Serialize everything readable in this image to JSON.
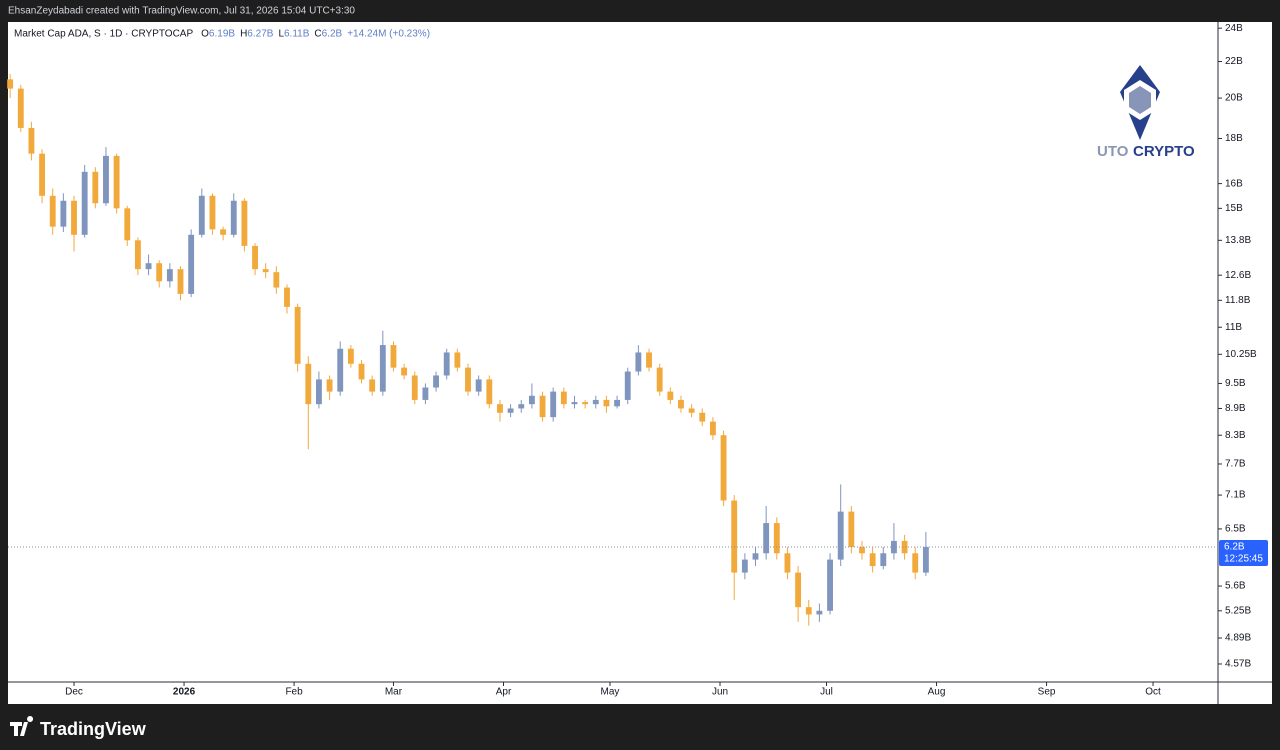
{
  "header": {
    "credit": "EhsanZeydabadi created with TradingView.com, Jul 31, 2026 15:04 UTC+3:30"
  },
  "legend": {
    "symbol": "Market Cap ADA, S · 1D · CRYPTOCAP",
    "items": [
      {
        "key": "O",
        "value": "6.19B"
      },
      {
        "key": "H",
        "value": "6.27B"
      },
      {
        "key": "L",
        "value": "6.11B"
      },
      {
        "key": "C",
        "value": "6.2B"
      }
    ],
    "change": "+14.24M (+0.23%)"
  },
  "logo": {
    "first": "UTO",
    "second": "CRYPTO"
  },
  "footer": {
    "brand": "TradingView"
  },
  "chart_data": {
    "type": "candlestick",
    "log_scale": true,
    "grid": false,
    "up_color": "#7f95bd",
    "down_color": "#f2a93b",
    "xlim": [
      -18.6,
      322.3
    ],
    "xticks": [
      {
        "value": 0,
        "label": "Dec"
      },
      {
        "value": 31,
        "label": "2026"
      },
      {
        "value": 62,
        "label": "Feb"
      },
      {
        "value": 90,
        "label": "Mar"
      },
      {
        "value": 121,
        "label": "Apr"
      },
      {
        "value": 151,
        "label": "May"
      },
      {
        "value": 182,
        "label": "Jun"
      },
      {
        "value": 212,
        "label": "Jul"
      },
      {
        "value": 243,
        "label": "Aug"
      },
      {
        "value": 274,
        "label": "Sep"
      },
      {
        "value": 304,
        "label": "Oct"
      }
    ],
    "ylim": [
      4.36,
      24.39
    ],
    "yticks": [
      {
        "value": 24,
        "label": "24B"
      },
      {
        "value": 22,
        "label": "22B"
      },
      {
        "value": 20,
        "label": "20B"
      },
      {
        "value": 18,
        "label": "18B"
      },
      {
        "value": 16,
        "label": "16B"
      },
      {
        "value": 15,
        "label": "15B"
      },
      {
        "value": 13.8,
        "label": "13.8B"
      },
      {
        "value": 12.6,
        "label": "12.6B"
      },
      {
        "value": 11.8,
        "label": "11.8B"
      },
      {
        "value": 11,
        "label": "11B"
      },
      {
        "value": 10.25,
        "label": "10.25B"
      },
      {
        "value": 9.5,
        "label": "9.5B"
      },
      {
        "value": 8.9,
        "label": "8.9B"
      },
      {
        "value": 8.3,
        "label": "8.3B"
      },
      {
        "value": 7.7,
        "label": "7.7B"
      },
      {
        "value": 7.1,
        "label": "7.1B"
      },
      {
        "value": 6.5,
        "label": "6.5B"
      },
      {
        "value": 5.6,
        "label": "5.6B"
      },
      {
        "value": 5.25,
        "label": "5.25B"
      },
      {
        "value": 4.89,
        "label": "4.89B"
      },
      {
        "value": 4.57,
        "label": "4.57B"
      }
    ],
    "last_price": {
      "value": 6.2,
      "label": "6.2B",
      "countdown": "12:25:45",
      "color": "#2962ff"
    },
    "x": [
      -18,
      -15,
      -12,
      -9,
      -6,
      -3,
      0,
      3,
      6,
      9,
      12,
      15,
      18,
      21,
      24,
      27,
      30,
      33,
      36,
      39,
      42,
      45,
      48,
      51,
      54,
      57,
      60,
      63,
      66,
      69,
      72,
      75,
      78,
      81,
      84,
      87,
      90,
      93,
      96,
      99,
      102,
      105,
      108,
      111,
      114,
      117,
      120,
      123,
      126,
      129,
      132,
      135,
      138,
      141,
      144,
      147,
      150,
      153,
      156,
      159,
      162,
      165,
      168,
      171,
      174,
      177,
      180,
      183,
      186,
      189,
      192,
      195,
      198,
      201,
      204,
      207,
      210,
      213,
      216,
      219,
      222,
      225,
      228,
      231,
      234,
      237,
      240
    ],
    "open": [
      21.0,
      20.5,
      18.5,
      17.3,
      15.5,
      14.3,
      15.3,
      14.0,
      16.5,
      15.2,
      17.2,
      15.0,
      13.8,
      12.8,
      13.0,
      12.4,
      12.8,
      12.0,
      14.0,
      15.5,
      14.2,
      14.0,
      15.3,
      13.6,
      12.8,
      12.7,
      12.2,
      11.6,
      10.0,
      9.0,
      9.6,
      9.3,
      10.4,
      10.0,
      9.6,
      9.3,
      10.5,
      9.9,
      9.7,
      9.1,
      9.4,
      9.7,
      10.3,
      9.9,
      9.3,
      9.6,
      9.0,
      8.8,
      8.9,
      9.0,
      9.2,
      8.7,
      9.3,
      9.0,
      9.05,
      9.0,
      9.1,
      8.95,
      9.1,
      9.8,
      10.3,
      9.9,
      9.3,
      9.1,
      8.9,
      8.8,
      8.6,
      8.3,
      7.0,
      5.8,
      6.0,
      6.1,
      6.6,
      6.1,
      5.8,
      5.3,
      5.2,
      5.25,
      6.0,
      6.8,
      6.2,
      6.1,
      5.9,
      6.1,
      6.3,
      6.1,
      5.8
    ],
    "high": [
      21.3,
      20.7,
      18.8,
      17.5,
      15.8,
      15.6,
      15.5,
      16.8,
      16.7,
      17.6,
      17.3,
      15.1,
      13.9,
      13.3,
      13.1,
      13.0,
      12.9,
      14.2,
      15.8,
      15.6,
      14.3,
      15.6,
      15.4,
      13.7,
      13.0,
      12.9,
      12.3,
      11.7,
      10.2,
      9.8,
      9.7,
      10.6,
      10.5,
      10.1,
      9.7,
      10.9,
      10.6,
      10.0,
      9.8,
      9.5,
      9.8,
      10.4,
      10.4,
      10.0,
      9.7,
      9.7,
      9.1,
      9.0,
      9.1,
      9.5,
      9.3,
      9.4,
      9.4,
      9.2,
      9.1,
      9.2,
      9.2,
      9.2,
      9.9,
      10.5,
      10.4,
      10.0,
      9.4,
      9.2,
      9.0,
      8.9,
      8.7,
      8.4,
      7.1,
      6.1,
      6.2,
      6.9,
      6.7,
      6.2,
      5.9,
      5.4,
      5.35,
      6.1,
      7.3,
      6.9,
      6.3,
      6.2,
      6.2,
      6.6,
      6.4,
      6.2,
      6.45
    ],
    "low": [
      20.0,
      18.3,
      17.0,
      15.2,
      14.0,
      14.1,
      13.4,
      13.9,
      15.0,
      15.1,
      14.8,
      13.6,
      12.6,
      12.6,
      12.2,
      12.2,
      11.8,
      11.9,
      13.9,
      14.0,
      13.8,
      13.9,
      13.4,
      12.6,
      12.5,
      12.0,
      11.4,
      9.8,
      8.0,
      8.9,
      9.1,
      9.2,
      9.9,
      9.5,
      9.2,
      9.2,
      9.8,
      9.6,
      9.0,
      9.0,
      9.3,
      9.6,
      9.8,
      9.2,
      9.2,
      8.9,
      8.6,
      8.7,
      8.8,
      8.9,
      8.6,
      8.6,
      8.9,
      8.9,
      8.9,
      8.9,
      8.8,
      8.9,
      9.0,
      9.7,
      9.8,
      9.2,
      9.0,
      8.8,
      8.7,
      8.5,
      8.2,
      6.9,
      5.4,
      5.7,
      5.9,
      6.0,
      6.0,
      5.7,
      5.1,
      5.05,
      5.1,
      5.2,
      5.9,
      6.1,
      6.0,
      5.8,
      5.85,
      6.0,
      6.0,
      5.7,
      5.75
    ],
    "close": [
      20.5,
      18.5,
      17.3,
      15.5,
      14.3,
      15.3,
      14.0,
      16.5,
      15.2,
      17.2,
      15.0,
      13.8,
      12.8,
      13.0,
      12.4,
      12.8,
      12.0,
      14.0,
      15.5,
      14.2,
      14.0,
      15.3,
      13.6,
      12.8,
      12.7,
      12.2,
      11.6,
      10.0,
      9.0,
      9.6,
      9.3,
      10.4,
      10.0,
      9.6,
      9.3,
      10.5,
      9.9,
      9.7,
      9.1,
      9.4,
      9.7,
      10.3,
      9.9,
      9.3,
      9.6,
      9.0,
      8.8,
      8.9,
      9.0,
      9.2,
      8.7,
      9.3,
      9.0,
      9.05,
      9.0,
      9.1,
      8.95,
      9.1,
      9.8,
      10.3,
      9.9,
      9.3,
      9.1,
      8.9,
      8.8,
      8.6,
      8.3,
      7.0,
      5.8,
      6.0,
      6.1,
      6.6,
      6.1,
      5.8,
      5.3,
      5.2,
      5.25,
      6.0,
      6.8,
      6.2,
      6.1,
      5.9,
      6.1,
      6.3,
      6.1,
      5.8,
      6.2
    ]
  }
}
